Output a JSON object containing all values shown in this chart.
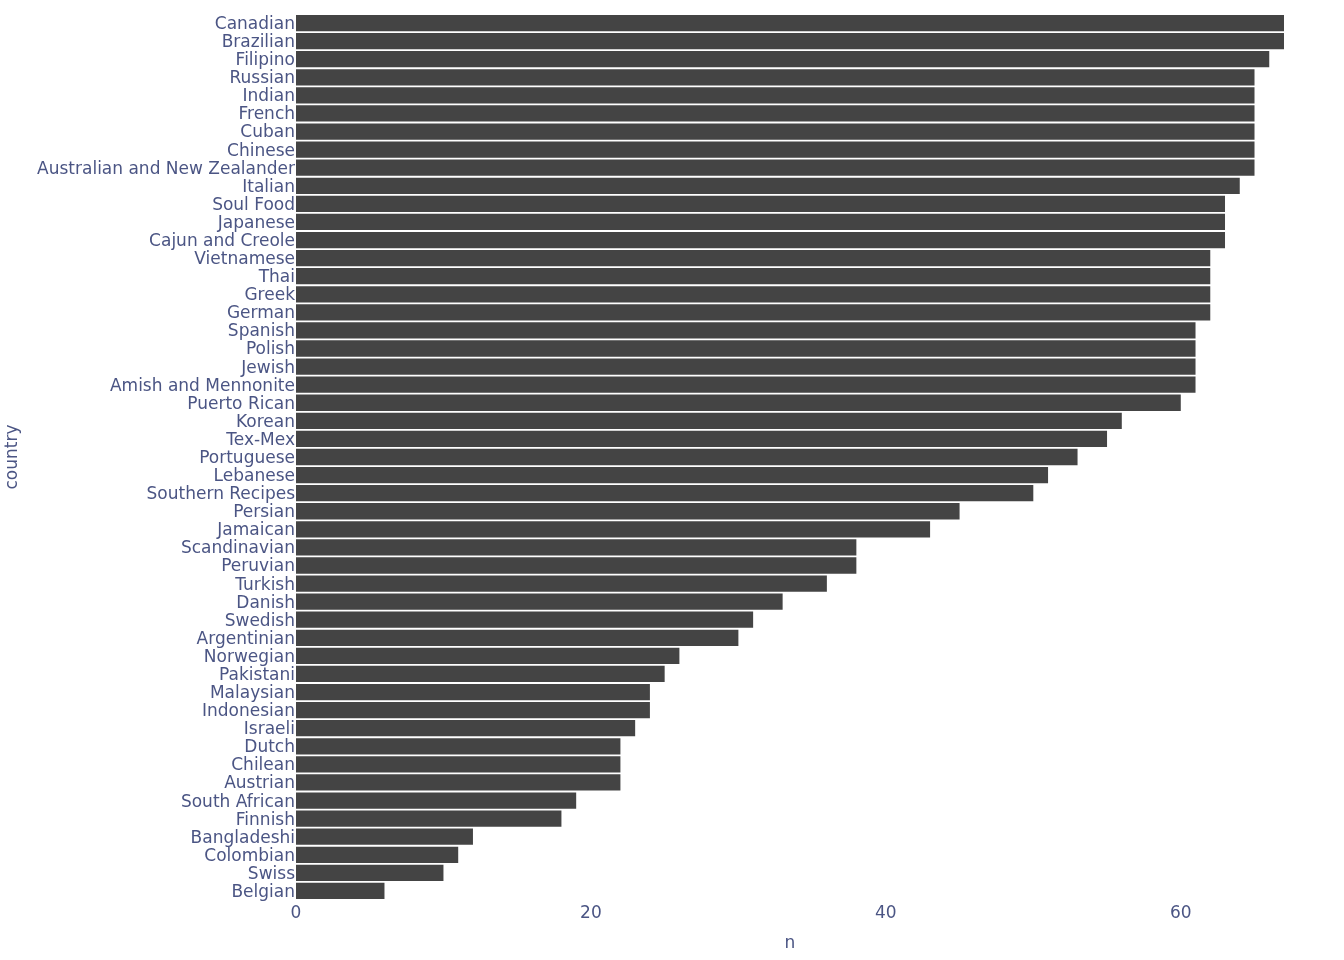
{
  "chart_data": {
    "type": "bar",
    "orientation": "horizontal",
    "xlabel": "n",
    "ylabel": "country",
    "categories": [
      "Canadian",
      "Brazilian",
      "Filipino",
      "Russian",
      "Indian",
      "French",
      "Cuban",
      "Chinese",
      "Australian and New Zealander",
      "Italian",
      "Soul Food",
      "Japanese",
      "Cajun and Creole",
      "Vietnamese",
      "Thai",
      "Greek",
      "German",
      "Spanish",
      "Polish",
      "Jewish",
      "Amish and Mennonite",
      "Puerto Rican",
      "Korean",
      "Tex-Mex",
      "Portuguese",
      "Lebanese",
      "Southern Recipes",
      "Persian",
      "Jamaican",
      "Scandinavian",
      "Peruvian",
      "Turkish",
      "Danish",
      "Swedish",
      "Argentinian",
      "Norwegian",
      "Pakistani",
      "Malaysian",
      "Indonesian",
      "Israeli",
      "Dutch",
      "Chilean",
      "Austrian",
      "South African",
      "Finnish",
      "Bangladeshi",
      "Colombian",
      "Swiss",
      "Belgian"
    ],
    "values": [
      67,
      67,
      66,
      65,
      65,
      65,
      65,
      65,
      65,
      64,
      63,
      63,
      63,
      62,
      62,
      62,
      62,
      61,
      61,
      61,
      61,
      60,
      56,
      55,
      53,
      51,
      50,
      45,
      43,
      38,
      38,
      36,
      33,
      31,
      30,
      26,
      25,
      24,
      24,
      23,
      22,
      22,
      22,
      19,
      18,
      12,
      11,
      10,
      6
    ],
    "color": "#444444",
    "xlim": [
      0,
      67
    ],
    "xticks": [
      0,
      20,
      40,
      60
    ]
  }
}
